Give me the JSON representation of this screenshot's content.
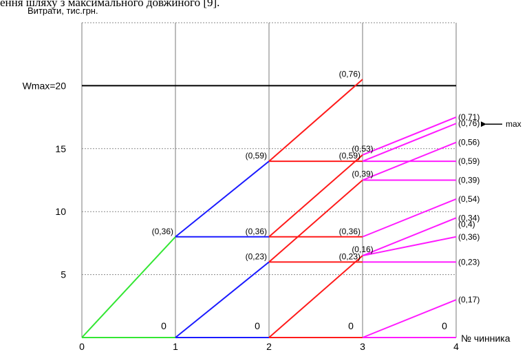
{
  "top_caption": "ення шляху з максимального довжиного [9].",
  "chart_data": {
    "type": "line",
    "ylabel": "Витрати, тис.грн.",
    "xlabel": "№ чинника",
    "xlim": [
      0,
      4
    ],
    "ylim": [
      0,
      25
    ],
    "xticks": [
      "0",
      "1",
      "2",
      "3",
      "4"
    ],
    "yticks": [
      {
        "value": 5,
        "label": "5"
      },
      {
        "value": 10,
        "label": "10"
      },
      {
        "value": 15,
        "label": "15"
      }
    ],
    "wmax": {
      "value": 20,
      "label": "Wmax=20"
    },
    "grid": "dashed horizontal, solid vertical",
    "colors": {
      "step1": "#33e633",
      "step2": "#1a1aff",
      "step3": "#ff1a1a",
      "step4": "#ff1aff",
      "wmax": "#000000"
    },
    "segments": [
      {
        "step": 1,
        "x": [
          0,
          1
        ],
        "y": [
          0,
          0
        ]
      },
      {
        "step": 1,
        "x": [
          0,
          1
        ],
        "y": [
          0,
          8
        ]
      },
      {
        "step": 2,
        "x": [
          1,
          2
        ],
        "y": [
          0,
          0
        ]
      },
      {
        "step": 2,
        "x": [
          1,
          2
        ],
        "y": [
          0,
          6
        ]
      },
      {
        "step": 2,
        "x": [
          1,
          2
        ],
        "y": [
          8,
          8
        ]
      },
      {
        "step": 2,
        "x": [
          1,
          2
        ],
        "y": [
          8,
          14
        ]
      },
      {
        "step": 3,
        "x": [
          2,
          3
        ],
        "y": [
          0,
          0
        ]
      },
      {
        "step": 3,
        "x": [
          2,
          3
        ],
        "y": [
          0,
          6.5
        ]
      },
      {
        "step": 3,
        "x": [
          2,
          3
        ],
        "y": [
          6,
          6
        ]
      },
      {
        "step": 3,
        "x": [
          2,
          3
        ],
        "y": [
          6,
          12.5
        ]
      },
      {
        "step": 3,
        "x": [
          2,
          3
        ],
        "y": [
          8,
          8
        ]
      },
      {
        "step": 3,
        "x": [
          2,
          3
        ],
        "y": [
          8,
          14.5
        ]
      },
      {
        "step": 3,
        "x": [
          2,
          3
        ],
        "y": [
          14,
          14
        ]
      },
      {
        "step": 3,
        "x": [
          2,
          3
        ],
        "y": [
          14,
          20.5
        ]
      },
      {
        "step": 4,
        "x": [
          3,
          4
        ],
        "y": [
          0,
          0
        ]
      },
      {
        "step": 4,
        "x": [
          3,
          4
        ],
        "y": [
          0,
          3
        ]
      },
      {
        "step": 4,
        "x": [
          3,
          4
        ],
        "y": [
          6,
          6
        ]
      },
      {
        "step": 4,
        "x": [
          3,
          4
        ],
        "y": [
          6.5,
          9.5
        ]
      },
      {
        "step": 4,
        "x": [
          3,
          4
        ],
        "y": [
          6.5,
          8
        ]
      },
      {
        "step": 4,
        "x": [
          3,
          4
        ],
        "y": [
          8,
          11
        ]
      },
      {
        "step": 4,
        "x": [
          3,
          4
        ],
        "y": [
          12.5,
          12.5
        ]
      },
      {
        "step": 4,
        "x": [
          3,
          4
        ],
        "y": [
          12.5,
          15.5
        ]
      },
      {
        "step": 4,
        "x": [
          3,
          4
        ],
        "y": [
          14,
          14
        ]
      },
      {
        "step": 4,
        "x": [
          3,
          4
        ],
        "y": [
          14.5,
          17.5
        ]
      },
      {
        "step": 4,
        "x": [
          3,
          4
        ],
        "y": [
          14,
          17
        ]
      }
    ],
    "point_labels": [
      {
        "x": 1,
        "y": 8,
        "text": "(0,36)",
        "pos": "left"
      },
      {
        "x": 2,
        "y": 14,
        "text": "(0,59)",
        "pos": "left"
      },
      {
        "x": 2,
        "y": 8,
        "text": "(0,36)",
        "pos": "left"
      },
      {
        "x": 2,
        "y": 6,
        "text": "(0,23)",
        "pos": "left"
      },
      {
        "x": 3,
        "y": 20.5,
        "text": "(0,76)",
        "pos": "left"
      },
      {
        "x": 3,
        "y": 14,
        "text": "(0,59)",
        "pos": "left"
      },
      {
        "x": 3,
        "y": 14.5,
        "text": "(0,53)",
        "pos": "above"
      },
      {
        "x": 3,
        "y": 12.5,
        "text": "(0,39)",
        "pos": "above"
      },
      {
        "x": 3,
        "y": 8,
        "text": "(0,36)",
        "pos": "left"
      },
      {
        "x": 3,
        "y": 6,
        "text": "(0,23)",
        "pos": "left"
      },
      {
        "x": 3,
        "y": 6.5,
        "text": "(0,16)",
        "pos": "above"
      },
      {
        "x": 4,
        "y": 17.5,
        "text": "(0,71)",
        "pos": "right"
      },
      {
        "x": 4,
        "y": 17,
        "text": "(0,76)",
        "pos": "right"
      },
      {
        "x": 4,
        "y": 15.5,
        "text": "(0,56)",
        "pos": "right"
      },
      {
        "x": 4,
        "y": 14,
        "text": "(0,59)",
        "pos": "right"
      },
      {
        "x": 4,
        "y": 12.5,
        "text": "(0,39)",
        "pos": "right"
      },
      {
        "x": 4,
        "y": 11,
        "text": "(0,54)",
        "pos": "right"
      },
      {
        "x": 4,
        "y": 9.5,
        "text": "(0,34)",
        "pos": "right"
      },
      {
        "x": 4,
        "y": 9,
        "text": "(0,4)",
        "pos": "right"
      },
      {
        "x": 4,
        "y": 8,
        "text": "(0,36)",
        "pos": "right"
      },
      {
        "x": 4,
        "y": 6,
        "text": "(0,23)",
        "pos": "right"
      },
      {
        "x": 4,
        "y": 3,
        "text": "(0,17)",
        "pos": "right"
      }
    ],
    "zero_labels": [
      {
        "x": 1,
        "text": "0"
      },
      {
        "x": 2,
        "text": "0"
      },
      {
        "x": 3,
        "text": "0"
      },
      {
        "x": 4,
        "text": "0"
      }
    ],
    "max_annotation": {
      "text": "max",
      "x": 4,
      "y": 17
    }
  }
}
